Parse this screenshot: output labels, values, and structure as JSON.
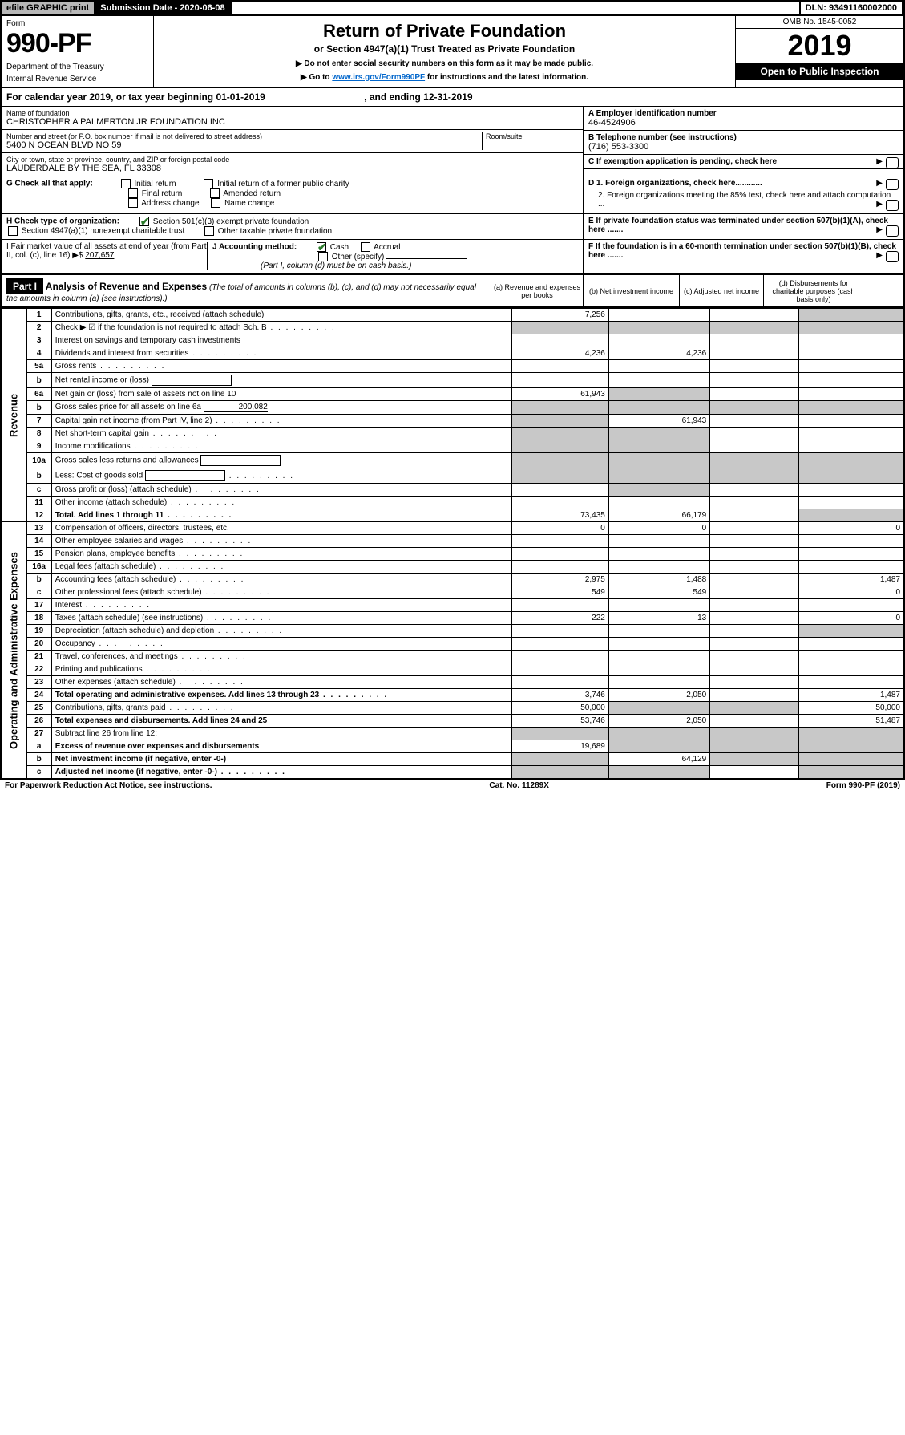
{
  "topbar": {
    "efile": "efile GRAPHIC print",
    "subdate_label": "Submission Date - 2020-06-08",
    "dln": "DLN: 93491160002000"
  },
  "header": {
    "form_label": "Form",
    "form_no": "990-PF",
    "dept1": "Department of the Treasury",
    "dept2": "Internal Revenue Service",
    "title": "Return of Private Foundation",
    "subtitle": "or Section 4947(a)(1) Trust Treated as Private Foundation",
    "note1": "▶ Do not enter social security numbers on this form as it may be made public.",
    "note2_pre": "▶ Go to ",
    "note2_link": "www.irs.gov/Form990PF",
    "note2_post": " for instructions and the latest information.",
    "omb": "OMB No. 1545-0052",
    "year": "2019",
    "inspect": "Open to Public Inspection"
  },
  "calyear": {
    "text": "For calendar year 2019, or tax year beginning 01-01-2019",
    "end": ", and ending 12-31-2019"
  },
  "foundation": {
    "name_lbl": "Name of foundation",
    "name": "CHRISTOPHER A PALMERTON JR FOUNDATION INC",
    "addr_lbl": "Number and street (or P.O. box number if mail is not delivered to street address)",
    "addr": "5400 N OCEAN BLVD NO 59",
    "room_lbl": "Room/suite",
    "city_lbl": "City or town, state or province, country, and ZIP or foreign postal code",
    "city": "LAUDERDALE BY THE SEA, FL  33308",
    "ein_lbl": "A Employer identification number",
    "ein": "46-4524906",
    "tel_lbl": "B Telephone number (see instructions)",
    "tel": "(716) 553-3300",
    "c_lbl": "C If exemption application is pending, check here",
    "d1": "D 1. Foreign organizations, check here............",
    "d2": "2. Foreign organizations meeting the 85% test, check here and attach computation ...",
    "e_lbl": "E  If private foundation status was terminated under section 507(b)(1)(A), check here .......",
    "f_lbl": "F  If the foundation is in a 60-month termination under section 507(b)(1)(B), check here ......."
  },
  "g": {
    "label": "G Check all that apply:",
    "opts": [
      "Initial return",
      "Initial return of a former public charity",
      "Final return",
      "Amended return",
      "Address change",
      "Name change"
    ]
  },
  "h": {
    "label": "H Check type of organization:",
    "opt1": "Section 501(c)(3) exempt private foundation",
    "opt2": "Section 4947(a)(1) nonexempt charitable trust",
    "opt3": "Other taxable private foundation"
  },
  "i": {
    "label": "I Fair market value of all assets at end of year (from Part II, col. (c), line 16) ▶$",
    "val": "207,657"
  },
  "j": {
    "label": "J Accounting method:",
    "cash": "Cash",
    "accrual": "Accrual",
    "other": "Other (specify)",
    "note": "(Part I, column (d) must be on cash basis.)"
  },
  "part1": {
    "label": "Part I",
    "title": "Analysis of Revenue and Expenses",
    "note": "(The total of amounts in columns (b), (c), and (d) may not necessarily equal the amounts in column (a) (see instructions).)",
    "cols": {
      "a": "(a)   Revenue and expenses per books",
      "b": "(b)  Net investment income",
      "c": "(c)  Adjusted net income",
      "d": "(d)  Disbursements for charitable purposes (cash basis only)"
    }
  },
  "vlabels": {
    "rev": "Revenue",
    "exp": "Operating and Administrative Expenses"
  },
  "rows": [
    {
      "n": "1",
      "d": "Contributions, gifts, grants, etc., received (attach schedule)",
      "a": "7,256",
      "grey_bcd": false,
      "grey_d": true
    },
    {
      "n": "2",
      "d": "Check ▶ ☑ if the foundation is not required to attach Sch. B",
      "dots": true,
      "grey_all": true
    },
    {
      "n": "3",
      "d": "Interest on savings and temporary cash investments"
    },
    {
      "n": "4",
      "d": "Dividends and interest from securities",
      "a": "4,236",
      "b": "4,236",
      "dots": true
    },
    {
      "n": "5a",
      "d": "Gross rents",
      "dots": true
    },
    {
      "n": "b",
      "d": "Net rental income or (loss)",
      "blank_after": true
    },
    {
      "n": "6a",
      "d": "Net gain or (loss) from sale of assets not on line 10",
      "a": "61,943",
      "grey_b": true
    },
    {
      "n": "b",
      "d": "Gross sales price for all assets on line 6a",
      "inline_val": "200,082",
      "grey_all": true
    },
    {
      "n": "7",
      "d": "Capital gain net income (from Part IV, line 2)",
      "b": "61,943",
      "grey_a": true,
      "dots": true
    },
    {
      "n": "8",
      "d": "Net short-term capital gain",
      "grey_ab": true,
      "dots": true
    },
    {
      "n": "9",
      "d": "Income modifications",
      "grey_ab": true,
      "dots": true
    },
    {
      "n": "10a",
      "d": "Gross sales less returns and allowances",
      "grey_all": true,
      "blank_after": true
    },
    {
      "n": "b",
      "d": "Less: Cost of goods sold",
      "grey_all": true,
      "blank_after": true,
      "dots": true
    },
    {
      "n": "c",
      "d": "Gross profit or (loss) (attach schedule)",
      "grey_b": true,
      "dots": true
    },
    {
      "n": "11",
      "d": "Other income (attach schedule)",
      "dots": true
    },
    {
      "n": "12",
      "d": "Total. Add lines 1 through 11",
      "a": "73,435",
      "b": "66,179",
      "bold": true,
      "dots": true,
      "grey_d": true
    },
    {
      "n": "13",
      "d": "Compensation of officers, directors, trustees, etc.",
      "a": "0",
      "b": "0",
      "dd": "0"
    },
    {
      "n": "14",
      "d": "Other employee salaries and wages",
      "dots": true
    },
    {
      "n": "15",
      "d": "Pension plans, employee benefits",
      "dots": true
    },
    {
      "n": "16a",
      "d": "Legal fees (attach schedule)",
      "dots": true
    },
    {
      "n": "b",
      "d": "Accounting fees (attach schedule)",
      "a": "2,975",
      "b": "1,488",
      "dd": "1,487",
      "dots": true
    },
    {
      "n": "c",
      "d": "Other professional fees (attach schedule)",
      "a": "549",
      "b": "549",
      "dd": "0",
      "dots": true
    },
    {
      "n": "17",
      "d": "Interest",
      "dots": true
    },
    {
      "n": "18",
      "d": "Taxes (attach schedule) (see instructions)",
      "a": "222",
      "b": "13",
      "dd": "0",
      "dots": true
    },
    {
      "n": "19",
      "d": "Depreciation (attach schedule) and depletion",
      "grey_d": true,
      "dots": true
    },
    {
      "n": "20",
      "d": "Occupancy",
      "dots": true
    },
    {
      "n": "21",
      "d": "Travel, conferences, and meetings",
      "dots": true
    },
    {
      "n": "22",
      "d": "Printing and publications",
      "dots": true
    },
    {
      "n": "23",
      "d": "Other expenses (attach schedule)",
      "dots": true
    },
    {
      "n": "24",
      "d": "Total operating and administrative expenses. Add lines 13 through 23",
      "a": "3,746",
      "b": "2,050",
      "dd": "1,487",
      "bold": true,
      "dots": true
    },
    {
      "n": "25",
      "d": "Contributions, gifts, grants paid",
      "a": "50,000",
      "dd": "50,000",
      "grey_bc": true,
      "dots": true
    },
    {
      "n": "26",
      "d": "Total expenses and disbursements. Add lines 24 and 25",
      "a": "53,746",
      "b": "2,050",
      "dd": "51,487",
      "bold": true
    },
    {
      "n": "27",
      "d": "Subtract line 26 from line 12:",
      "grey_all": true
    },
    {
      "n": "a",
      "d": "Excess of revenue over expenses and disbursements",
      "a": "19,689",
      "grey_bcd": true,
      "bold": true
    },
    {
      "n": "b",
      "d": "Net investment income (if negative, enter -0-)",
      "b": "64,129",
      "grey_acd": true,
      "bold": true
    },
    {
      "n": "c",
      "d": "Adjusted net income (if negative, enter -0-)",
      "grey_abd": true,
      "bold": true,
      "dots": true
    }
  ],
  "footer": {
    "left": "For Paperwork Reduction Act Notice, see instructions.",
    "mid": "Cat. No. 11289X",
    "right": "Form 990-PF (2019)"
  }
}
